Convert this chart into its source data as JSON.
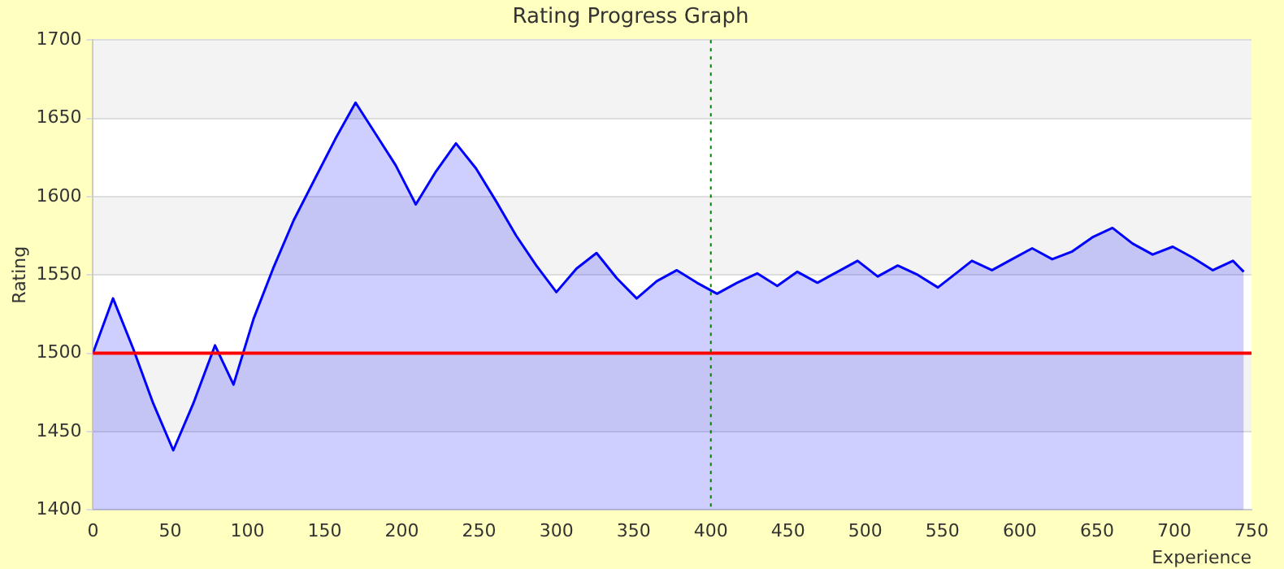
{
  "chart_data": {
    "type": "area",
    "title": "Rating Progress Graph",
    "xlabel": "Experience",
    "ylabel": "Rating",
    "x": [
      0,
      13,
      26,
      39,
      52,
      65,
      79,
      91,
      104,
      117,
      130,
      144,
      157,
      170,
      183,
      196,
      209,
      222,
      235,
      248,
      261,
      274,
      287,
      300,
      313,
      326,
      339,
      352,
      365,
      378,
      391,
      404,
      417,
      430,
      443,
      456,
      469,
      482,
      495,
      508,
      521,
      534,
      547,
      560,
      569,
      582,
      595,
      608,
      621,
      634,
      647,
      660,
      673,
      686,
      699,
      712,
      725,
      738,
      745
    ],
    "series": [
      {
        "color": "#0000ff",
        "values": [
          1500,
          1535,
          1503,
          1468,
          1438,
          1468,
          1505,
          1480,
          1522,
          1555,
          1585,
          1612,
          1637,
          1660,
          1640,
          1620,
          1595,
          1616,
          1634,
          1618,
          1597,
          1575,
          1556,
          1539,
          1554,
          1564,
          1548,
          1535,
          1546,
          1553,
          1545,
          1538,
          1545,
          1551,
          1543,
          1552,
          1545,
          1552,
          1559,
          1549,
          1556,
          1550,
          1542,
          1552,
          1559,
          1553,
          1560,
          1567,
          1560,
          1565,
          1574,
          1580,
          1570,
          1563,
          1568,
          1561,
          1553,
          1559,
          1552
        ]
      }
    ],
    "xlim": [
      0,
      750
    ],
    "xticks": [
      0,
      50,
      100,
      150,
      200,
      250,
      300,
      350,
      400,
      450,
      500,
      550,
      600,
      650,
      700,
      750
    ],
    "ylim": [
      1400,
      1700
    ],
    "yticks": [
      1400,
      1450,
      1500,
      1550,
      1600,
      1650,
      1700
    ],
    "grid": "y",
    "legend": false,
    "marker": "none",
    "line_style": "solid",
    "ref_lines": [
      {
        "axis": "y",
        "value": 1500,
        "color": "#ff0000",
        "line_style": "solid"
      },
      {
        "axis": "x",
        "value": 400,
        "color": "#008000",
        "line_style": "dotted"
      }
    ]
  }
}
